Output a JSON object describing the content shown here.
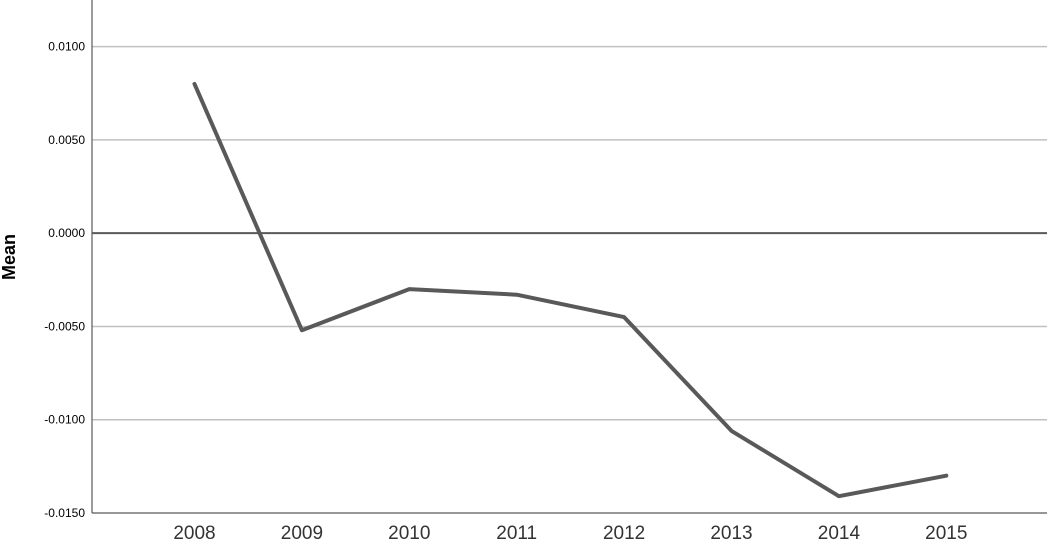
{
  "chart_data": {
    "type": "line",
    "title": "",
    "xlabel": "",
    "ylabel": "Mean",
    "x": [
      "2008",
      "2009",
      "2010",
      "2011",
      "2012",
      "2013",
      "2014",
      "2015"
    ],
    "series": [
      {
        "values": [
          0.008,
          -0.0052,
          -0.003,
          -0.0033,
          -0.0045,
          -0.0106,
          -0.0141,
          -0.013
        ],
        "color": "#595959"
      }
    ],
    "ylim": [
      -0.015,
      0.0125
    ],
    "yticks": [
      0.01,
      0.005,
      0.0,
      -0.005,
      -0.01,
      -0.015
    ],
    "ytick_labels": [
      "0.0100",
      "0.0050",
      "0.0000",
      "-0.0050",
      "-0.0100",
      "-0.0150"
    ],
    "reference_line": 0.0,
    "grid": "horizontal",
    "legend": "none",
    "colors": {
      "line": "#595959",
      "grid": "#c0c0c0",
      "reference": "#595959",
      "axis": "#595959"
    }
  }
}
